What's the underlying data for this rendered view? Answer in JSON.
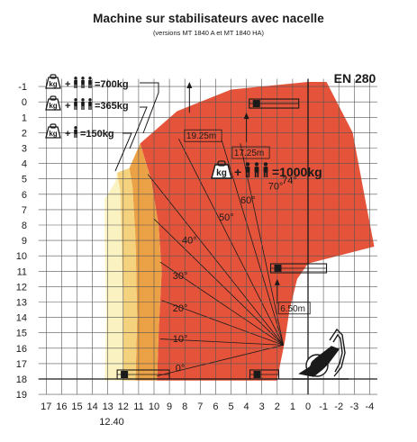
{
  "title": "Machine sur stabilisateurs avec nacelle",
  "subtitle": "(versions MT 1840 A et MT 1840 HA)",
  "standard": "EN 280",
  "axes": {
    "x_ticks": [
      "17",
      "16",
      "15",
      "14",
      "13",
      "12",
      "11",
      "10",
      "9",
      "8",
      "7",
      "6",
      "5",
      "4",
      "3",
      "2",
      "1",
      "0",
      "-1",
      "-2",
      "-3",
      "-4"
    ],
    "x_extra_label": "12.40",
    "y_ticks": [
      "19",
      "18",
      "17",
      "16",
      "15",
      "14",
      "13",
      "12",
      "11",
      "10",
      "9",
      "8",
      "7",
      "6",
      "5",
      "4",
      "3",
      "2",
      "1",
      "0",
      "-1"
    ]
  },
  "load_legend": [
    {
      "persons": 3,
      "text": "=700kg"
    },
    {
      "persons": 3,
      "text": "=365kg"
    },
    {
      "persons": 1,
      "text": "=150kg"
    }
  ],
  "main_load": {
    "text": "+",
    "value": "=1000kg",
    "persons": 3
  },
  "kg_label": "kg",
  "boom_angles": [
    "0°",
    "10°",
    "20°",
    "30°",
    "40°",
    "50°",
    "60°",
    "70°",
    "74°"
  ],
  "extension_labels": [
    "19.25m",
    "17.25m",
    "6.50m"
  ],
  "colors": {
    "zone_main": "#e5543a",
    "zone_700": "#eba247",
    "zone_365": "#f5d27e",
    "zone_150": "#fbf2c1",
    "grid": "#555555"
  },
  "chart_data": {
    "type": "load-range diagram",
    "x_axis": {
      "min": -4.5,
      "max": 17.5,
      "reversed": true,
      "ticks": [
        17,
        16,
        15,
        14,
        13,
        12,
        11,
        10,
        9,
        8,
        7,
        6,
        5,
        4,
        3,
        2,
        1,
        0,
        -1,
        -2,
        -3,
        -4
      ],
      "extra_tick": 12.4
    },
    "y_axis": {
      "min": -1,
      "max": 19.5,
      "ticks": [
        -1,
        0,
        1,
        2,
        3,
        4,
        5,
        6,
        7,
        8,
        9,
        10,
        11,
        12,
        13,
        14,
        15,
        16,
        17,
        18,
        19
      ]
    },
    "zones": [
      {
        "label": "=1000kg",
        "outline": [
          [
            2,
            -0.1
          ],
          [
            9.8,
            -0.1
          ],
          [
            9.7,
            3
          ],
          [
            9.5,
            7
          ],
          [
            9.7,
            10
          ],
          [
            10.2,
            13
          ],
          [
            10.9,
            15.3
          ],
          [
            8.5,
            17.4
          ],
          [
            5,
            18.8
          ],
          [
            0,
            19.3
          ],
          [
            -1.2,
            19.3
          ],
          [
            -2.9,
            16
          ],
          [
            -3.8,
            11.2
          ],
          [
            -4.3,
            8.6
          ],
          [
            0,
            7.5
          ],
          [
            0.7,
            6.5
          ],
          [
            1.2,
            4.5
          ],
          [
            1.5,
            2.5
          ],
          [
            2,
            0
          ]
        ]
      },
      {
        "label": "=700kg",
        "outline": [
          [
            9.8,
            -0.1
          ],
          [
            11.2,
            -0.1
          ],
          [
            11.1,
            4
          ],
          [
            11.2,
            9
          ],
          [
            11.4,
            12.5
          ],
          [
            11.6,
            13.7
          ],
          [
            10.9,
            15.3
          ],
          [
            10.2,
            13
          ],
          [
            9.7,
            10
          ],
          [
            9.5,
            7
          ],
          [
            9.7,
            3
          ]
        ]
      },
      {
        "label": "=365kg",
        "outline": [
          [
            11.2,
            -0.1
          ],
          [
            12,
            -0.1
          ],
          [
            12,
            4
          ],
          [
            12.1,
            9
          ],
          [
            12.2,
            12.3
          ],
          [
            12.4,
            13.4
          ],
          [
            11.6,
            13.7
          ],
          [
            11.4,
            12.5
          ],
          [
            11.2,
            9
          ],
          [
            11.1,
            4
          ]
        ]
      },
      {
        "label": "=150kg",
        "outline": [
          [
            12,
            -0.1
          ],
          [
            13.2,
            -0.1
          ],
          [
            13.1,
            4
          ],
          [
            13.2,
            9
          ],
          [
            13.2,
            11.7
          ],
          [
            12.5,
            12.8
          ],
          [
            12.4,
            13.4
          ],
          [
            12.2,
            12.3
          ],
          [
            12.1,
            9
          ],
          [
            12,
            4
          ]
        ]
      }
    ],
    "boom_pivot": [
      1.6,
      2.2
    ],
    "boom_angle_labels": [
      {
        "text": "0°",
        "x": 8.3,
        "y": 0.5
      },
      {
        "text": "10°",
        "x": 8.3,
        "y": 2.4
      },
      {
        "text": "20°",
        "x": 8.3,
        "y": 4.4
      },
      {
        "text": "30°",
        "x": 8.3,
        "y": 6.5
      },
      {
        "text": "40°",
        "x": 7.7,
        "y": 8.8
      },
      {
        "text": "50°",
        "x": 5.3,
        "y": 10.3
      },
      {
        "text": "60°",
        "x": 3.9,
        "y": 11.4
      },
      {
        "text": "70°",
        "x": 2.1,
        "y": 12.3
      },
      {
        "text": "74°",
        "x": 1.2,
        "y": 12.7
      }
    ],
    "extension_markers": [
      {
        "text": "19.25m",
        "x": 7.9,
        "y": 15.6
      },
      {
        "text": "17.25m",
        "x": 4.8,
        "y": 14.5
      },
      {
        "text": "6.50m",
        "x": 1.8,
        "y": 4.4
      }
    ]
  }
}
